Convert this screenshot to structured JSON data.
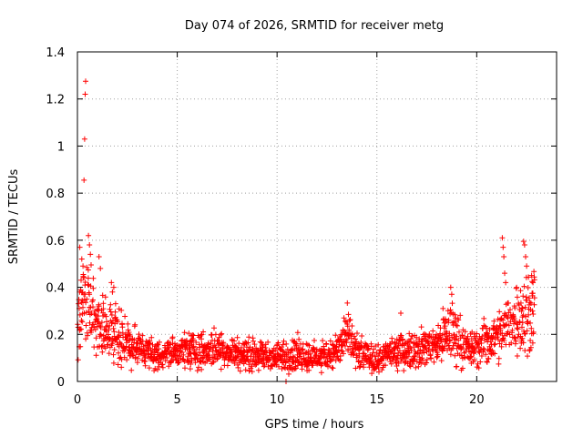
{
  "chart_data": {
    "type": "scatter",
    "title": "Day 074 of 2026, SRMTID for receiver metg",
    "xlabel": "GPS time / hours",
    "ylabel": "SRMTID / TECUs",
    "xlim": [
      0,
      24
    ],
    "ylim": [
      0,
      1.4
    ],
    "grid": true,
    "xticks": [
      0,
      5,
      10,
      15,
      20
    ],
    "xtick_labels": [
      "0",
      "5",
      "10",
      "15",
      "20"
    ],
    "yticks": [
      0,
      0.2,
      0.4,
      0.6,
      0.8,
      1.0,
      1.2,
      1.4
    ],
    "ytick_labels": [
      "0",
      "0.2",
      "0.4",
      "0.6",
      "0.8",
      "1",
      "1.2",
      "1.4"
    ],
    "marker": "plus",
    "color": "#ff0000",
    "baseline_profile": {
      "x": [
        0.0,
        0.5,
        1.0,
        1.5,
        2.0,
        2.5,
        3.0,
        3.5,
        4.0,
        5.0,
        6.0,
        7.0,
        8.0,
        9.0,
        10.0,
        11.0,
        12.0,
        13.0,
        13.5,
        14.0,
        15.0,
        16.0,
        17.0,
        18.0,
        18.7,
        19.5,
        20.0,
        20.5,
        21.0,
        21.5,
        22.0,
        22.5,
        22.9
      ],
      "y": [
        0.28,
        0.34,
        0.24,
        0.23,
        0.2,
        0.17,
        0.14,
        0.13,
        0.11,
        0.13,
        0.13,
        0.14,
        0.12,
        0.11,
        0.1,
        0.12,
        0.1,
        0.13,
        0.19,
        0.12,
        0.09,
        0.13,
        0.14,
        0.16,
        0.22,
        0.14,
        0.14,
        0.17,
        0.18,
        0.23,
        0.28,
        0.28,
        0.33
      ]
    },
    "outliers": {
      "x": [
        0.33,
        0.36,
        0.39,
        0.41,
        0.55,
        0.6,
        0.65,
        0.12,
        0.22,
        0.28,
        1.08,
        1.15,
        1.7,
        1.75,
        1.82,
        21.28,
        21.32,
        21.36,
        21.4,
        21.45,
        22.35,
        22.4,
        22.45,
        22.5,
        22.75,
        22.82,
        18.7,
        18.75,
        13.35,
        16.2,
        10.45
      ],
      "y": [
        0.855,
        1.03,
        1.22,
        1.275,
        0.62,
        0.58,
        0.54,
        0.57,
        0.52,
        0.49,
        0.53,
        0.48,
        0.42,
        0.38,
        0.4,
        0.61,
        0.57,
        0.53,
        0.46,
        0.42,
        0.595,
        0.58,
        0.53,
        0.49,
        0.45,
        0.42,
        0.4,
        0.37,
        0.27,
        0.29,
        0.0
      ]
    }
  }
}
